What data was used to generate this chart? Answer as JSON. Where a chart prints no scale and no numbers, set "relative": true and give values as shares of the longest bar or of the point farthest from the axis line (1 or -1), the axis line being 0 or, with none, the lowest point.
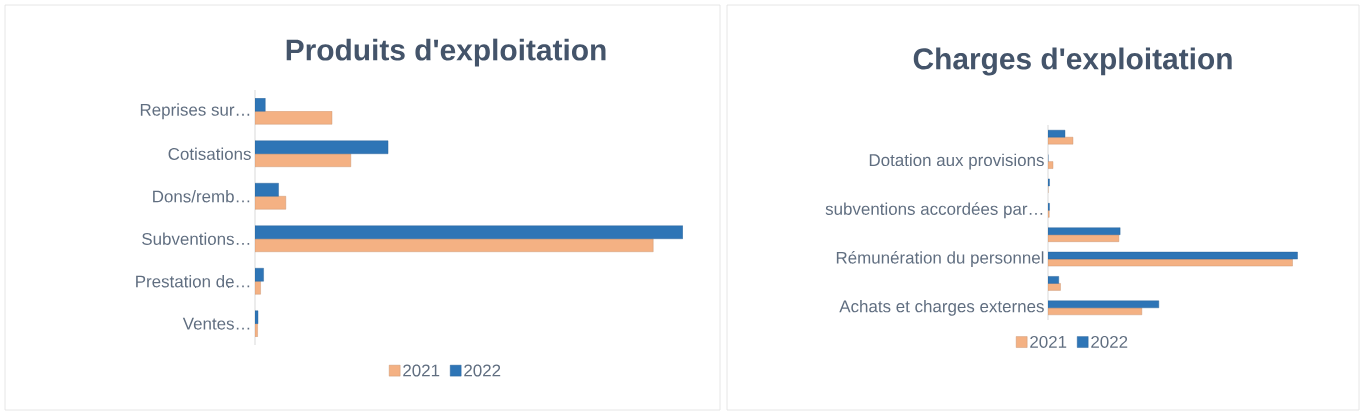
{
  "chart_data": [
    {
      "type": "bar",
      "orientation": "horizontal",
      "relative": true,
      "title": "Produits d'exploitation",
      "legend": "bottom",
      "categories": [
        "Reprises sur…",
        "Cotisations",
        "Dons/remb…",
        "Subventions…",
        "Prestation de…",
        "Ventes…"
      ],
      "series": [
        {
          "name": "2021",
          "color": "#f4b183",
          "values": [
            0.18,
            0.224,
            0.072,
            0.931,
            0.013,
            0.006
          ]
        },
        {
          "name": "2022",
          "color": "#2e75b6",
          "values": [
            0.024,
            0.311,
            0.055,
            1.0,
            0.02,
            0.007
          ]
        }
      ]
    },
    {
      "type": "bar",
      "orientation": "horizontal",
      "relative": true,
      "title": "Charges d'exploitation",
      "legend": "bottom",
      "categories": [
        null,
        "Dotation aux provisions",
        null,
        "subventions accordées par…",
        null,
        "Rémunération du personnel",
        null,
        "Achats et charges externes"
      ],
      "series": [
        {
          "name": "2021",
          "color": "#f4b183",
          "values": [
            0.1,
            0.02,
            0,
            0.005,
            0.284,
            0.98,
            0.05,
            0.376
          ]
        },
        {
          "name": "2022",
          "color": "#2e75b6",
          "values": [
            0.068,
            0,
            0.006,
            0.006,
            0.289,
            1.0,
            0.043,
            0.444
          ]
        }
      ]
    }
  ]
}
